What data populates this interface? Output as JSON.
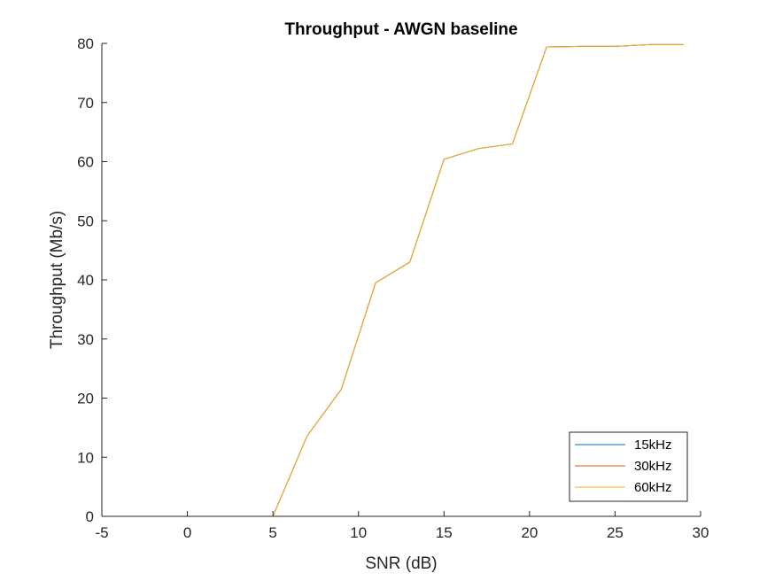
{
  "chart_data": {
    "type": "line",
    "title": "Throughput - AWGN baseline",
    "xlabel": "SNR (dB)",
    "ylabel": "Throughput (Mb/s)",
    "xlim": [
      -5,
      30
    ],
    "ylim": [
      0,
      80
    ],
    "xticks": [
      -5,
      0,
      5,
      10,
      15,
      20,
      25,
      30
    ],
    "yticks": [
      0,
      10,
      20,
      30,
      40,
      50,
      60,
      70,
      80
    ],
    "grid": false,
    "legend_position": "bottom-right",
    "x": [
      -5,
      -3,
      -1,
      1,
      3,
      5,
      7,
      9,
      11,
      13,
      15,
      17,
      19,
      21,
      23,
      25,
      27,
      29
    ],
    "series": [
      {
        "name": "15kHz",
        "color": "#0072BD",
        "values": [
          0,
          0,
          0,
          0,
          0,
          0,
          13.6,
          21.5,
          39.5,
          43.0,
          60.4,
          62.2,
          63.0,
          79.4,
          79.5,
          79.5,
          79.8,
          79.8
        ]
      },
      {
        "name": "30kHz",
        "color": "#D95319",
        "values": [
          0,
          0,
          0,
          0,
          0,
          0,
          13.6,
          21.5,
          39.5,
          43.0,
          60.4,
          62.2,
          63.0,
          79.4,
          79.5,
          79.5,
          79.8,
          79.8
        ]
      },
      {
        "name": "60kHz",
        "color": "#EDB120",
        "values": [
          0,
          0,
          0,
          0,
          0,
          0,
          13.6,
          21.5,
          39.5,
          43.0,
          60.4,
          62.2,
          63.0,
          79.4,
          79.5,
          79.5,
          79.8,
          79.8
        ]
      }
    ]
  }
}
